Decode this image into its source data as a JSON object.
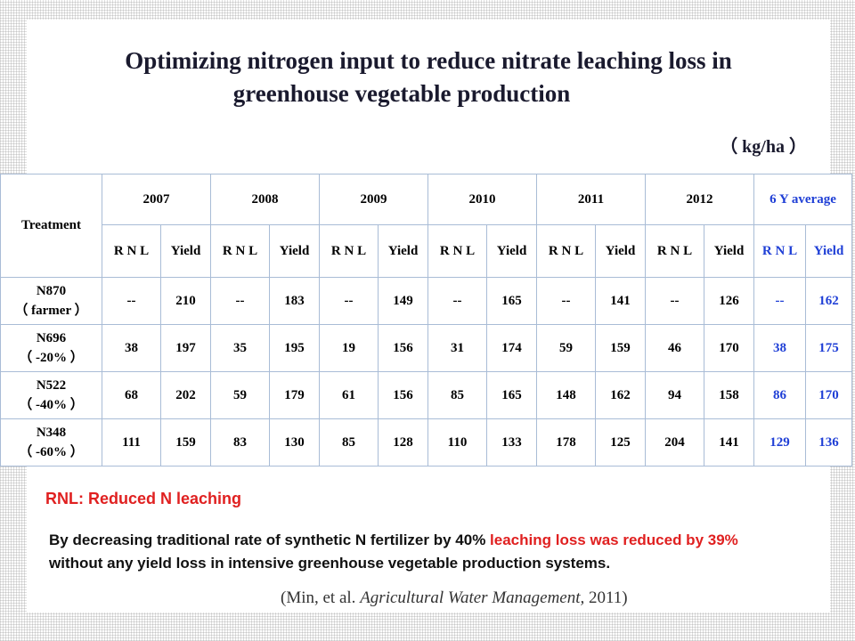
{
  "title_line1": "Optimizing nitrogen input to reduce nitrate leaching loss in",
  "title_line2": "greenhouse vegetable production",
  "unit": "（ kg/ha ）",
  "table": {
    "treatment_header": "Treatment",
    "years": [
      "2007",
      "2008",
      "2009",
      "2010",
      "2011",
      "2012",
      "6 Y average"
    ],
    "sub_headers": [
      "R N L",
      "Yield"
    ],
    "rows": [
      {
        "name": "N870",
        "note": "（ farmer ）",
        "cells": [
          "--",
          "210",
          "--",
          "183",
          "--",
          "149",
          "--",
          "165",
          "--",
          "141",
          "--",
          "126",
          "--",
          "162"
        ]
      },
      {
        "name": "N696",
        "note": "（ -20% ）",
        "cells": [
          "38",
          "197",
          "35",
          "195",
          "19",
          "156",
          "31",
          "174",
          "59",
          "159",
          "46",
          "170",
          "38",
          "175"
        ]
      },
      {
        "name": "N522",
        "note": "（ -40% ）",
        "cells": [
          "68",
          "202",
          "59",
          "179",
          "61",
          "156",
          "85",
          "165",
          "148",
          "162",
          "94",
          "158",
          "86",
          "170"
        ]
      },
      {
        "name": "N348",
        "note": "（ -60% ）",
        "cells": [
          "111",
          "159",
          "83",
          "130",
          "85",
          "128",
          "110",
          "133",
          "178",
          "125",
          "204",
          "141",
          "129",
          "136"
        ]
      }
    ]
  },
  "rnl_note": "RNL: Reduced N leaching",
  "paragraph": {
    "part1": "By decreasing traditional rate of synthetic N fertilizer by 40% ",
    "highlight": "leaching loss was reduced by 39%",
    "part2": " without any yield loss in intensive greenhouse vegetable production systems."
  },
  "citation": {
    "prefix": "(Min, et al. ",
    "journal": "Agricultural Water Management,",
    "suffix": " 2011)"
  },
  "colors": {
    "accent_blue": "#1f3fd6",
    "highlight_red": "#e02020",
    "border": "#a9bcd6"
  }
}
